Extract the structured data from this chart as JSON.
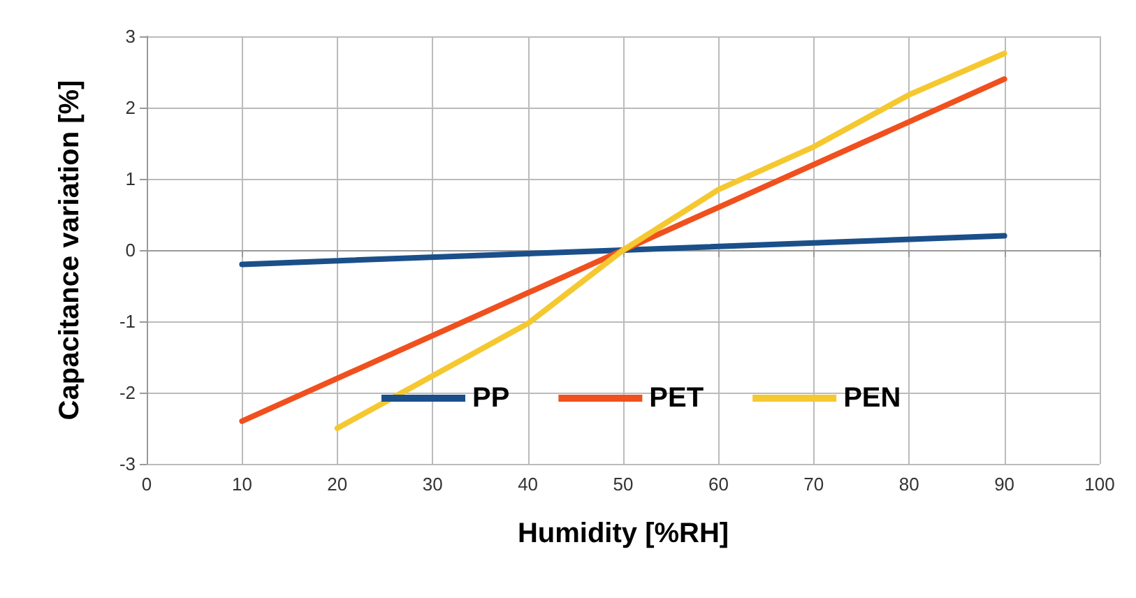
{
  "chart_data": {
    "type": "line",
    "xlabel": "Humidity [%RH]",
    "ylabel": "Capacitance variation [%]",
    "xlim": [
      0,
      100
    ],
    "xticks": [
      0,
      10,
      20,
      30,
      40,
      50,
      60,
      70,
      80,
      90,
      100
    ],
    "ylim": [
      -3,
      3
    ],
    "yticks": [
      -3,
      -2,
      -1,
      0,
      1,
      2,
      3
    ],
    "grid": true,
    "legend": "bottom",
    "marker": "none",
    "line_style": "solid",
    "series": [
      {
        "name": "PP",
        "color": "#1a4f8a",
        "x": [
          10,
          50,
          90
        ],
        "values": [
          -0.2,
          0,
          0.2
        ]
      },
      {
        "name": "PET",
        "color": "#f0501e",
        "x": [
          10,
          50,
          90
        ],
        "values": [
          -2.4,
          0,
          2.4
        ]
      },
      {
        "name": "PEN",
        "color": "#f5c830",
        "x": [
          20,
          40,
          50,
          60,
          70,
          80,
          90
        ],
        "values": [
          -2.5,
          -1.03,
          0,
          0.85,
          1.45,
          2.18,
          2.76
        ]
      }
    ]
  }
}
